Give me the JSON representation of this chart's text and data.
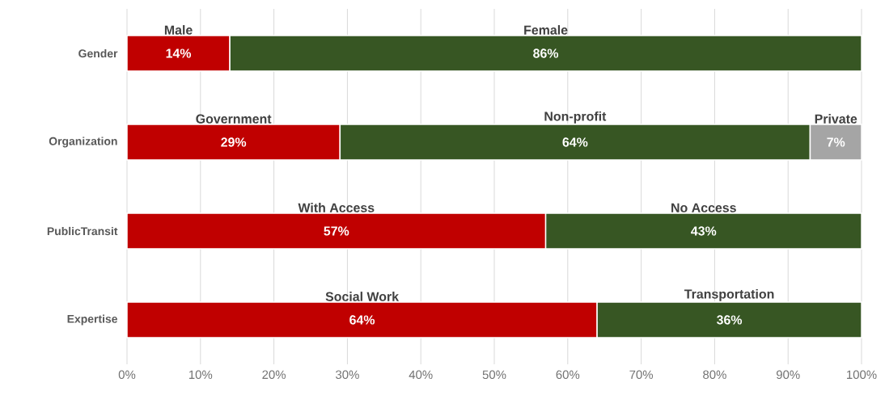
{
  "chart_data": {
    "type": "bar",
    "orientation": "horizontal",
    "stacked": true,
    "grid": "x",
    "categories": [
      "Gender",
      "Organization",
      "PublicTransit",
      "Expertise"
    ],
    "series": [
      {
        "color": "#c00000",
        "values": [
          14,
          29,
          57,
          64
        ],
        "value_labels": [
          "14%",
          "29%",
          "57%",
          "64%"
        ]
      },
      {
        "color": "#375623",
        "values": [
          86,
          64,
          43,
          36
        ],
        "value_labels": [
          "86%",
          "64%",
          "43%",
          "36%"
        ]
      },
      {
        "color": "#a5a5a5",
        "values": [
          null,
          7,
          null,
          null
        ],
        "value_labels": [
          null,
          "7%",
          null,
          null
        ]
      }
    ],
    "xlim": [
      0,
      100
    ],
    "xticks": [
      {
        "value": 0,
        "label": "0%"
      },
      {
        "value": 10,
        "label": "10%"
      },
      {
        "value": 20,
        "label": "20%"
      },
      {
        "value": 30,
        "label": "30%"
      },
      {
        "value": 40,
        "label": "40%"
      },
      {
        "value": 50,
        "label": "50%"
      },
      {
        "value": 60,
        "label": "60%"
      },
      {
        "value": 70,
        "label": "70%"
      },
      {
        "value": 80,
        "label": "80%"
      },
      {
        "value": 90,
        "label": "90%"
      },
      {
        "value": 100,
        "label": "100%"
      }
    ],
    "annotations": [
      "Male",
      "Female",
      "Government",
      "Non-profit",
      "Private",
      "With Access",
      "No Access",
      "Social Work",
      "Transportation"
    ]
  }
}
